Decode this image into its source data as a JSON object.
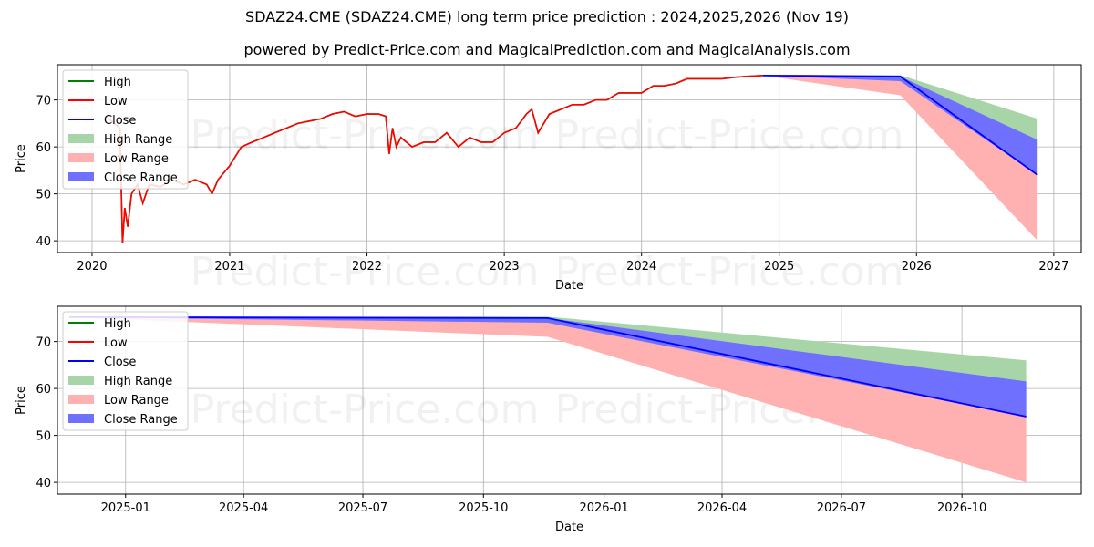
{
  "page": {
    "title": "SDAZ24.CME (SDAZ24.CME) long term price prediction : 2024,2025,2026 (Nov 19)",
    "subtitle": "powered by Predict-Price.com and MagicalPrediction.com and MagicalAnalysis.com",
    "watermark": "Predict-Price.com"
  },
  "colors": {
    "high": "#008000",
    "low": "#ff0000",
    "close": "#0000ff",
    "high_range": "#a8d5a8",
    "low_range": "#ffb0b0",
    "close_range": "#7070ff",
    "grid": "#b0b0b0"
  },
  "chart_data": [
    {
      "type": "line",
      "xlabel": "Date",
      "ylabel": "Price",
      "xlim": [
        "2019-10-01",
        "2027-03-15"
      ],
      "ylim": [
        37.5,
        77.5
      ],
      "x_ticks": [
        "2020",
        "2021",
        "2022",
        "2023",
        "2024",
        "2025",
        "2026",
        "2027"
      ],
      "y_ticks": [
        40,
        50,
        60,
        70
      ],
      "grid": true,
      "legend": [
        "High",
        "Low",
        "Close",
        "High Range",
        "Low Range",
        "Close Range"
      ],
      "legend_position": "upper-left",
      "history_series": {
        "name": "Low",
        "x": [
          "2020-02-15",
          "2020-03-15",
          "2020-03-22",
          "2020-03-28",
          "2020-04-05",
          "2020-04-15",
          "2020-05-01",
          "2020-05-15",
          "2020-06-01",
          "2020-07-01",
          "2020-08-01",
          "2020-09-01",
          "2020-10-01",
          "2020-11-01",
          "2020-11-15",
          "2020-12-01",
          "2021-01-01",
          "2021-02-01",
          "2021-03-01",
          "2021-04-01",
          "2021-05-01",
          "2021-06-01",
          "2021-07-01",
          "2021-08-01",
          "2021-09-01",
          "2021-10-01",
          "2021-11-01",
          "2021-12-01",
          "2022-01-01",
          "2022-02-01",
          "2022-02-20",
          "2022-03-01",
          "2022-03-10",
          "2022-03-20",
          "2022-04-01",
          "2022-05-01",
          "2022-06-01",
          "2022-07-01",
          "2022-08-01",
          "2022-09-01",
          "2022-10-01",
          "2022-11-01",
          "2022-12-01",
          "2023-01-01",
          "2023-02-01",
          "2023-03-01",
          "2023-03-15",
          "2023-04-01",
          "2023-05-01",
          "2023-06-01",
          "2023-07-01",
          "2023-08-01",
          "2023-09-01",
          "2023-10-01",
          "2023-11-01",
          "2023-12-01",
          "2024-01-01",
          "2024-02-01",
          "2024-03-01",
          "2024-04-01",
          "2024-05-01",
          "2024-06-01",
          "2024-07-01",
          "2024-08-01",
          "2024-09-01",
          "2024-10-01",
          "2024-11-19"
        ],
        "values": [
          66,
          64,
          39.5,
          47,
          43,
          50,
          52,
          48,
          52,
          51.5,
          53,
          52,
          53,
          52,
          50,
          53,
          56,
          60,
          61,
          62,
          63,
          64,
          65,
          65.5,
          66,
          67,
          67.5,
          66.5,
          67,
          67,
          66.5,
          58.5,
          64,
          60,
          62,
          60,
          61,
          61,
          63,
          60,
          62,
          61,
          61,
          63,
          64,
          67,
          68,
          63,
          67,
          68,
          69,
          69,
          70,
          70,
          71.5,
          71.5,
          71.5,
          73,
          73,
          73.5,
          74.5,
          74.5,
          74.5,
          74.5,
          74.8,
          75,
          75.2
        ]
      },
      "forecast": {
        "x": [
          "2024-11-19",
          "2025-11-19",
          "2026-11-19"
        ],
        "close": [
          75.2,
          75.0,
          54.0
        ],
        "high_range": {
          "upper": [
            75.2,
            75.3,
            66.0
          ],
          "lower": [
            75.2,
            75.0,
            54.0
          ]
        },
        "low_range": {
          "upper": [
            75.2,
            75.0,
            54.0
          ],
          "lower": [
            75.2,
            71.0,
            40.0
          ]
        },
        "close_range": {
          "upper": [
            75.2,
            75.0,
            61.5
          ],
          "lower": [
            75.2,
            74.0,
            54.0
          ]
        }
      }
    },
    {
      "type": "line",
      "xlabel": "Date",
      "ylabel": "Price",
      "xlim": [
        "2024-11-10",
        "2026-12-31"
      ],
      "ylim": [
        37.5,
        77.5
      ],
      "x_ticks": [
        "2025-01",
        "2025-04",
        "2025-07",
        "2025-10",
        "2026-01",
        "2026-04",
        "2026-07",
        "2026-10"
      ],
      "y_ticks": [
        40,
        50,
        60,
        70
      ],
      "grid": true,
      "legend": [
        "High",
        "Low",
        "Close",
        "High Range",
        "Low Range",
        "Close Range"
      ],
      "legend_position": "upper-left"
    }
  ]
}
